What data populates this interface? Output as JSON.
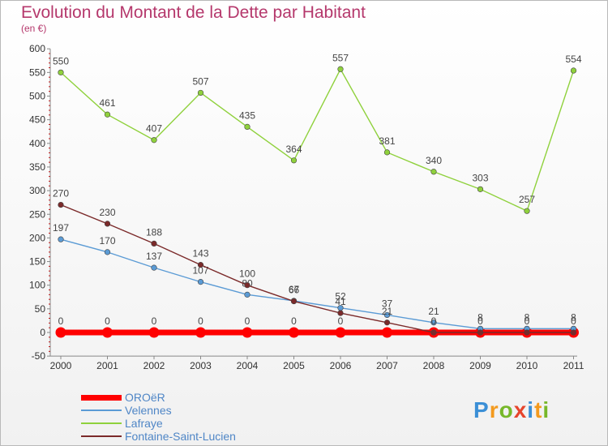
{
  "title": "Evolution du Montant de la Dette par Habitant",
  "unit": "(en €)",
  "logo": {
    "letters": [
      "P",
      "r",
      "o",
      "x",
      "i",
      "t",
      "i"
    ],
    "colors": [
      "#3b8fd6",
      "#f39a1e",
      "#77b82a",
      "#e6452c",
      "#3b8fd6",
      "#f39a1e",
      "#77b82a"
    ]
  },
  "chart_data": {
    "type": "line",
    "categories": [
      "2000",
      "2001",
      "2002",
      "2003",
      "2004",
      "2005",
      "2006",
      "2007",
      "2008",
      "2009",
      "2010",
      "2011"
    ],
    "ylim": [
      -50,
      600
    ],
    "yticks": [
      "-50",
      "0",
      "50",
      "100",
      "150",
      "200",
      "250",
      "300",
      "350",
      "400",
      "450",
      "500",
      "550",
      "600"
    ],
    "grid": false,
    "legend_position": "bottom-left",
    "series": [
      {
        "name": "OROëR",
        "color": "#ff0000",
        "values": [
          0,
          0,
          0,
          0,
          0,
          0,
          0,
          0,
          0,
          0,
          0,
          0
        ],
        "labels": [
          "0",
          "0",
          "0",
          "0",
          "0",
          "0",
          "0",
          "",
          "",
          "",
          "",
          ""
        ]
      },
      {
        "name": "Velennes",
        "color": "#5b9bd5",
        "values": [
          197,
          170,
          137,
          107,
          80,
          67,
          52,
          37,
          21,
          8,
          8,
          8
        ],
        "labels": [
          "197",
          "170",
          "137",
          "107",
          "80",
          "67",
          "52",
          "37",
          "21",
          "8",
          "8",
          "8"
        ]
      },
      {
        "name": "Lafraye",
        "color": "#8fd13c",
        "values": [
          550,
          461,
          407,
          507,
          435,
          364,
          557,
          381,
          340,
          303,
          257,
          554
        ],
        "labels": [
          "550",
          "461",
          "407",
          "507",
          "435",
          "364",
          "557",
          "381",
          "340",
          "303",
          "257",
          "554"
        ]
      },
      {
        "name": "Fontaine-Saint-Lucien",
        "color": "#7b2a2a",
        "values": [
          270,
          230,
          188,
          143,
          100,
          66,
          41,
          21,
          0,
          0,
          0,
          0
        ],
        "labels": [
          "270",
          "230",
          "188",
          "143",
          "100",
          "66",
          "41",
          "21",
          "0",
          "0",
          "0",
          "0"
        ]
      }
    ]
  }
}
